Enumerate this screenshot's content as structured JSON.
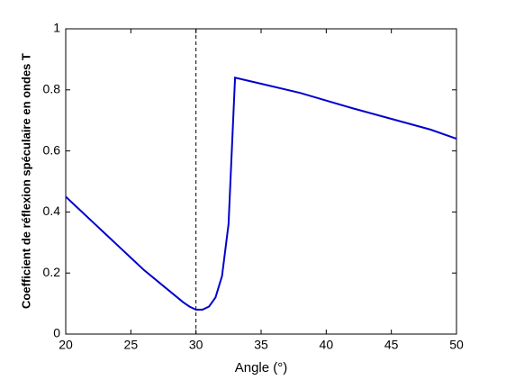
{
  "chart_data": {
    "type": "line",
    "xlabel": "Angle  (°)",
    "ylabel": "Coefficient de réflexion spéculaire en ondes T",
    "x": [
      20,
      21,
      22,
      23,
      24,
      25,
      26,
      27,
      28,
      29,
      29.5,
      30,
      30.5,
      31,
      31.5,
      32,
      32.5,
      33,
      35,
      38,
      40,
      42,
      45,
      48,
      50
    ],
    "values": [
      0.45,
      0.41,
      0.37,
      0.33,
      0.29,
      0.25,
      0.21,
      0.175,
      0.14,
      0.105,
      0.09,
      0.08,
      0.08,
      0.09,
      0.12,
      0.19,
      0.36,
      0.84,
      0.82,
      0.79,
      0.765,
      0.74,
      0.705,
      0.67,
      0.64
    ],
    "color": "#0000cc",
    "vline": 30,
    "xlim": [
      20,
      50
    ],
    "xticks": [
      20,
      25,
      30,
      35,
      40,
      45,
      50
    ],
    "ylim": [
      0,
      1
    ],
    "yticks": [
      0,
      0.2,
      0.4,
      0.6,
      0.8,
      1
    ]
  }
}
